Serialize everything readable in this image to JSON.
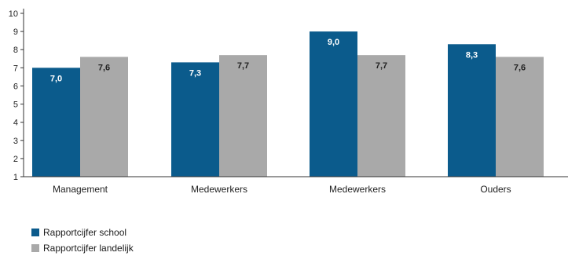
{
  "colors": {
    "school": "#0b5b8c",
    "landelijk": "#a9a9a9"
  },
  "chart_data": {
    "type": "bar",
    "categories": [
      "Management",
      "Medewerkers",
      "Medewerkers",
      "Ouders"
    ],
    "series": [
      {
        "name": "Rapportcijfer school",
        "values": [
          7.0,
          7.3,
          9.0,
          8.3
        ],
        "labels": [
          "7,0",
          "7,3",
          "9,0",
          "8,3"
        ]
      },
      {
        "name": "Rapportcijfer landelijk",
        "values": [
          7.6,
          7.7,
          7.7,
          7.6
        ],
        "labels": [
          "7,6",
          "7,7",
          "7,7",
          "7,6"
        ]
      }
    ],
    "yticks": [
      "1",
      "2",
      "3",
      "4",
      "5",
      "6",
      "7",
      "8",
      "9",
      "10"
    ],
    "ylim": [
      1,
      10
    ],
    "grid": false,
    "legend_position": "bottom-left"
  }
}
